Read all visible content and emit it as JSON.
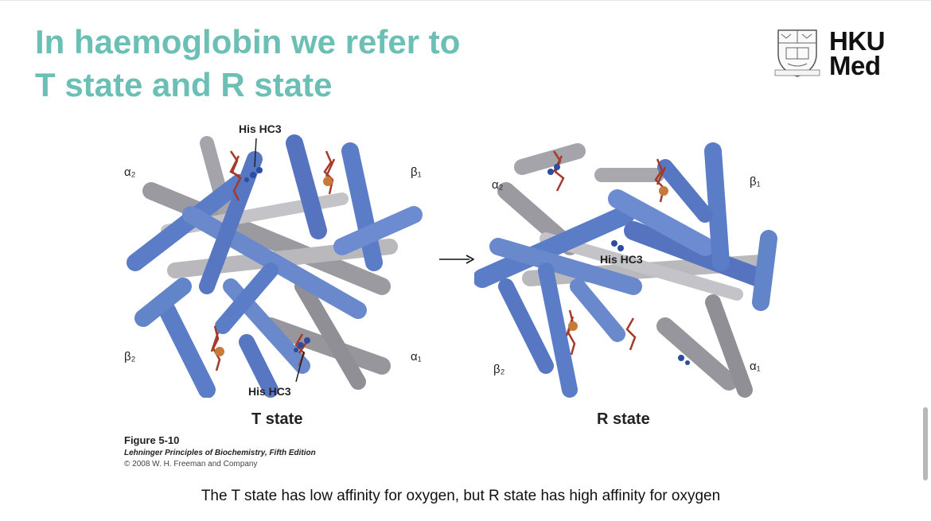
{
  "slide": {
    "title_line1": "In haemoglobin we refer to",
    "title_line2": "T state and R state",
    "footer_note": "The T state has low affinity for oxygen, but R state has high affinity for oxygen"
  },
  "logo": {
    "line1": "HKU",
    "line2": "Med"
  },
  "figure": {
    "t_state": {
      "label": "T state",
      "alpha2": "α₂",
      "beta1": "β₁",
      "beta2": "β₂",
      "alpha1": "α₁",
      "his_top": "His HC3",
      "his_bottom": "His HC3"
    },
    "r_state": {
      "label": "R state",
      "alpha2": "α₂",
      "beta1": "β₁",
      "beta2": "β₂",
      "alpha1": "α₁",
      "his": "His HC3"
    },
    "caption": {
      "title": "Figure 5-10",
      "book": "Lehninger Principles of Biochemistry, Fifth Edition",
      "copyright": "© 2008 W. H. Freeman and Company"
    }
  },
  "colors": {
    "title": "#6bbfb5",
    "blue_helix": "#5b7cc6",
    "grey_helix": "#a8a8ad",
    "heme": "#a33a2a"
  }
}
